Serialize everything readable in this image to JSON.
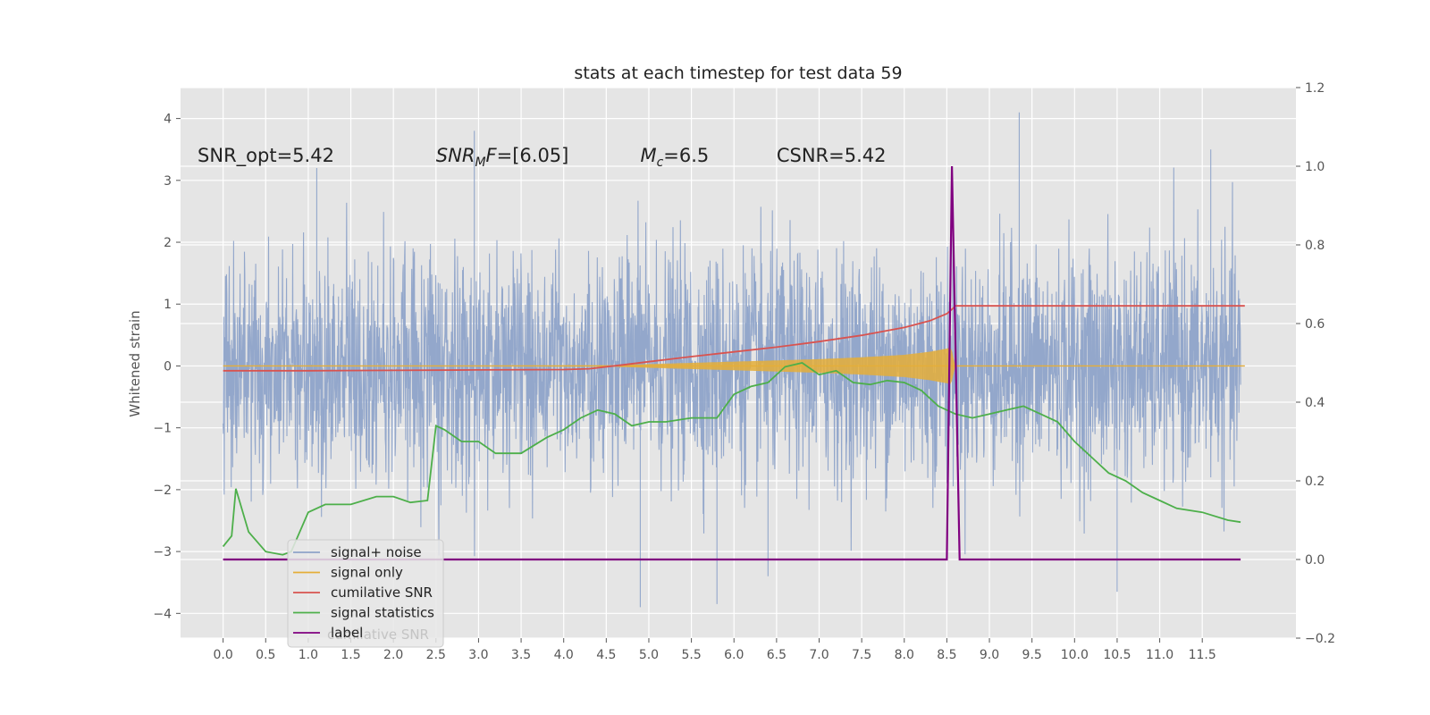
{
  "chart_data": {
    "type": "line",
    "title": "stats at each timestep for test data 59",
    "ylabel": "Whitened strain",
    "ylabel_right": "",
    "xlim": [
      -0.5,
      12.6
    ],
    "ylim": [
      -4.4,
      4.5
    ],
    "ylim_right": [
      -0.2,
      1.2
    ],
    "x_ticks": [
      "0.0",
      "0.5",
      "1.0",
      "1.5",
      "2.0",
      "2.5",
      "3.0",
      "3.5",
      "4.0",
      "4.5",
      "5.0",
      "5.5",
      "6.0",
      "6.5",
      "7.0",
      "7.5",
      "8.0",
      "8.5",
      "9.0",
      "9.5",
      "10.0",
      "10.5",
      "11.0",
      "11.5"
    ],
    "y_ticks": [
      -4,
      -3,
      -2,
      -1,
      0,
      1,
      2,
      3,
      4
    ],
    "y_tick_labels": [
      "−4",
      "−3",
      "−2",
      "−1",
      "0",
      "1",
      "2",
      "3",
      "4"
    ],
    "y_ticks_right": [
      -0.2,
      0.0,
      0.2,
      0.4,
      0.6,
      0.8,
      1.0,
      1.2
    ],
    "y_tick_labels_right": [
      "−0.2",
      "0.0",
      "0.2",
      "0.4",
      "0.6",
      "0.8",
      "1.0",
      "1.2"
    ],
    "grid": true,
    "legend_position": "lower-left",
    "annotations": [
      {
        "text": "SNR_opt=5.42",
        "x": -0.3,
        "y": 3.3
      },
      {
        "text": "SNR_MF=[6.05]",
        "x": 2.5,
        "y": 3.3
      },
      {
        "text": "M_c=6.5",
        "x": 4.9,
        "y": 3.3
      },
      {
        "text": "CSNR=5.42",
        "x": 6.5,
        "y": 3.3
      }
    ],
    "series": [
      {
        "name": "signal+ noise",
        "axis": "left",
        "color": "#8ea3c9",
        "description_values": {
          "x_start": 0.0,
          "x_end": 11.95,
          "typical_range": [
            -2.0,
            2.0
          ],
          "peak_max": 4.1,
          "peak_min": -3.9
        }
      },
      {
        "name": "signal only",
        "axis": "left",
        "color": "#e5ae38",
        "x": [
          0.0,
          4.5,
          5.0,
          5.5,
          6.0,
          6.5,
          7.0,
          7.5,
          8.0,
          8.3,
          8.5,
          8.55,
          8.6,
          12.0
        ],
        "envelope": [
          0.0,
          0.01,
          0.03,
          0.05,
          0.07,
          0.09,
          0.11,
          0.14,
          0.18,
          0.23,
          0.28,
          0.3,
          0.0,
          0.0
        ]
      },
      {
        "name": "cumilative SNR",
        "axis": "right",
        "color": "#d9534f",
        "x": [
          0.0,
          1.0,
          2.0,
          3.0,
          4.0,
          4.3,
          4.7,
          5.0,
          5.5,
          6.0,
          6.5,
          7.0,
          7.5,
          8.0,
          8.3,
          8.5,
          8.58,
          8.6,
          12.0
        ],
        "values": [
          0.48,
          0.48,
          0.481,
          0.482,
          0.483,
          0.485,
          0.495,
          0.503,
          0.516,
          0.528,
          0.54,
          0.554,
          0.57,
          0.59,
          0.607,
          0.625,
          0.64,
          0.645,
          0.645
        ]
      },
      {
        "name": "signal statistics",
        "axis": "right",
        "color": "#4daf4a",
        "x": [
          0.0,
          0.1,
          0.15,
          0.3,
          0.5,
          0.7,
          0.8,
          1.0,
          1.2,
          1.5,
          1.8,
          2.0,
          2.2,
          2.4,
          2.5,
          2.6,
          2.8,
          3.0,
          3.2,
          3.5,
          3.8,
          4.0,
          4.2,
          4.4,
          4.6,
          4.8,
          5.0,
          5.2,
          5.5,
          5.8,
          6.0,
          6.2,
          6.4,
          6.6,
          6.8,
          7.0,
          7.2,
          7.4,
          7.6,
          7.8,
          8.0,
          8.2,
          8.4,
          8.6,
          8.8,
          9.0,
          9.2,
          9.4,
          9.6,
          9.8,
          10.0,
          10.2,
          10.4,
          10.6,
          10.8,
          11.0,
          11.2,
          11.5,
          11.8,
          11.95
        ],
        "values": [
          0.033,
          0.06,
          0.18,
          0.07,
          0.02,
          0.012,
          0.02,
          0.12,
          0.14,
          0.14,
          0.16,
          0.16,
          0.145,
          0.15,
          0.34,
          0.33,
          0.3,
          0.3,
          0.27,
          0.27,
          0.31,
          0.33,
          0.36,
          0.38,
          0.37,
          0.34,
          0.35,
          0.35,
          0.36,
          0.36,
          0.42,
          0.44,
          0.45,
          0.49,
          0.5,
          0.47,
          0.48,
          0.45,
          0.445,
          0.455,
          0.45,
          0.43,
          0.39,
          0.37,
          0.36,
          0.37,
          0.38,
          0.39,
          0.37,
          0.35,
          0.3,
          0.26,
          0.22,
          0.2,
          0.17,
          0.15,
          0.13,
          0.12,
          0.1,
          0.095
        ]
      },
      {
        "name": "label",
        "axis": "right",
        "color": "#800080",
        "x": [
          0.0,
          8.5,
          8.56,
          8.65,
          11.95
        ],
        "values": [
          0.0,
          0.0,
          1.0,
          0.0,
          0.0
        ]
      }
    ],
    "legend_overlap_text": "cumilative SNR"
  }
}
